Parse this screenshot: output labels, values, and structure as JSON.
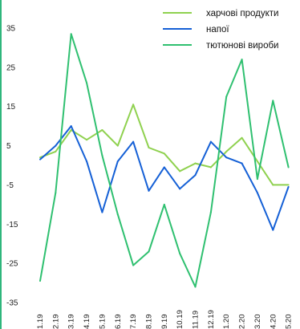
{
  "chart_data": {
    "type": "line",
    "categories": [
      "1.19",
      "2.19",
      "3.19",
      "4.19",
      "5.19",
      "6.19",
      "7.19",
      "8.19",
      "9.19",
      "10.19",
      "11.19",
      "12.19",
      "1.20",
      "2.20",
      "3.20",
      "4.20",
      "5.20"
    ],
    "yticks": [
      "35",
      "25",
      "15",
      "5",
      "-5",
      "-15",
      "-25",
      "-35"
    ],
    "ylim": [
      -35,
      35
    ],
    "grid": false,
    "legend_position": "top-right",
    "series": [
      {
        "name": "харчові продукти",
        "color": "#8fd14f",
        "values": [
          2,
          3.5,
          9,
          6.5,
          9,
          5,
          15.5,
          4.5,
          3,
          -1.5,
          0.5,
          -0.5,
          3.5,
          7,
          1,
          -5,
          -5
        ]
      },
      {
        "name": "напої",
        "color": "#1560d6",
        "values": [
          1.5,
          5,
          10,
          1,
          -12,
          1,
          6,
          -6.5,
          -0.5,
          -6,
          -2.5,
          6,
          2,
          0.5,
          -7,
          -16.5,
          -5.5
        ]
      },
      {
        "name": "тютюнові вироби",
        "color": "#2fc070",
        "values": [
          -29.5,
          -7,
          33.5,
          21,
          2.5,
          -12.5,
          -25.5,
          -22,
          -10,
          -22.5,
          -31,
          -12,
          17.5,
          27,
          -3.5,
          16.5,
          -0.5
        ]
      }
    ]
  }
}
